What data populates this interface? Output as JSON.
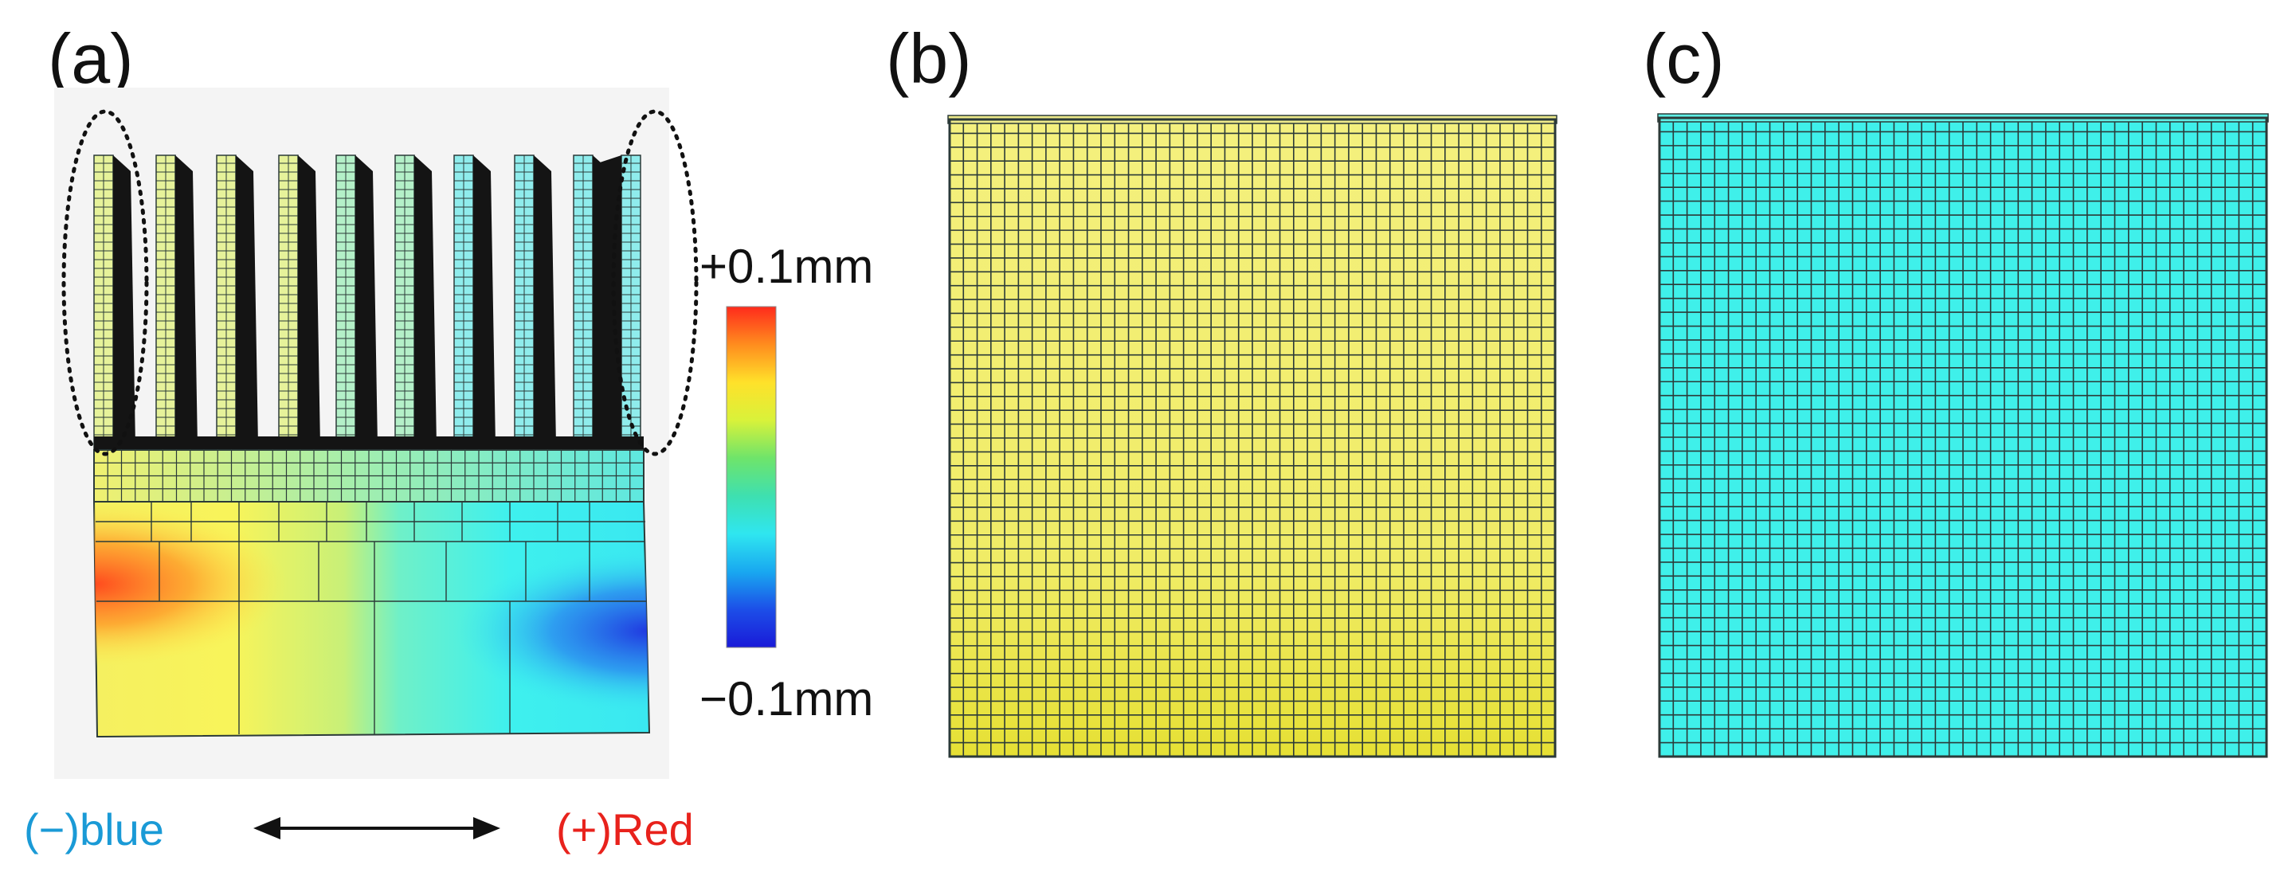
{
  "panels": {
    "a": {
      "label": "(a)"
    },
    "b": {
      "label": "(b)"
    },
    "c": {
      "label": "(c)"
    }
  },
  "colorbar": {
    "max_label": "+0.1mm",
    "min_label": "−0.1mm",
    "stops": [
      "#ff2b1c",
      "#ff8c1e",
      "#ffe12a",
      "#d9f23a",
      "#6fe46a",
      "#3ee0b0",
      "#2fe6f0",
      "#19a8f0",
      "#1c4ee8",
      "#1a1ad8"
    ]
  },
  "direction": {
    "negative_label": "(−)blue",
    "positive_label": "(+)Red",
    "negative_color": "#1a9ad6",
    "positive_color": "#e8221c"
  },
  "colors": {
    "panel_b_fill": "#f2ee78",
    "panel_b_fill_bottom": "#e9e43a",
    "panel_c_fill": "#3ff0ea",
    "mesh_line": "#2b3a38",
    "fin_dark": "#141414",
    "fin_mesh": "#a8ecd6"
  }
}
